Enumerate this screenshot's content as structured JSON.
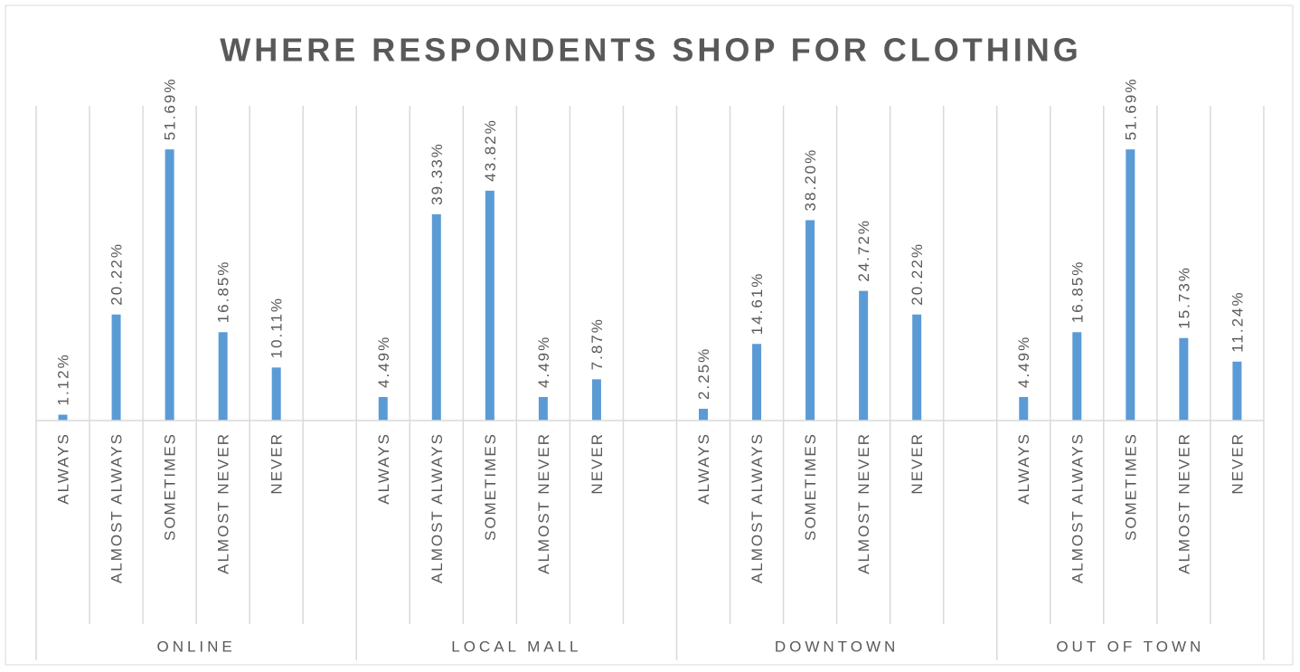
{
  "chart_data": {
    "type": "bar",
    "title": "WHERE RESPONDENTS SHOP FOR CLOTHING",
    "color": "#5b9bd5",
    "groups": [
      {
        "name": "ONLINE",
        "categories": [
          "ALWAYS",
          "ALMOST ALWAYS",
          "SOMETIMES",
          "ALMOST NEVER",
          "NEVER"
        ],
        "values": [
          1.12,
          20.22,
          51.69,
          16.85,
          10.11
        ],
        "value_labels": [
          "1.12%",
          "20.22%",
          "51.69%",
          "16.85%",
          "10.11%"
        ]
      },
      {
        "name": "LOCAL MALL",
        "categories": [
          "ALWAYS",
          "ALMOST ALWAYS",
          "SOMETIMES",
          "ALMOST NEVER",
          "NEVER"
        ],
        "values": [
          4.49,
          39.33,
          43.82,
          4.49,
          7.87
        ],
        "value_labels": [
          "4.49%",
          "39.33%",
          "43.82%",
          "4.49%",
          "7.87%"
        ]
      },
      {
        "name": "DOWNTOWN",
        "categories": [
          "ALWAYS",
          "ALMOST ALWAYS",
          "SOMETIMES",
          "ALMOST NEVER",
          "NEVER"
        ],
        "values": [
          2.25,
          14.61,
          38.2,
          24.72,
          20.22
        ],
        "value_labels": [
          "2.25%",
          "14.61%",
          "38.20%",
          "24.72%",
          "20.22%"
        ]
      },
      {
        "name": "OUT OF TOWN",
        "categories": [
          "ALWAYS",
          "ALMOST ALWAYS",
          "SOMETIMES",
          "ALMOST NEVER",
          "NEVER"
        ],
        "values": [
          4.49,
          16.85,
          51.69,
          15.73,
          11.24
        ],
        "value_labels": [
          "4.49%",
          "16.85%",
          "51.69%",
          "15.73%",
          "11.24%"
        ]
      }
    ]
  }
}
